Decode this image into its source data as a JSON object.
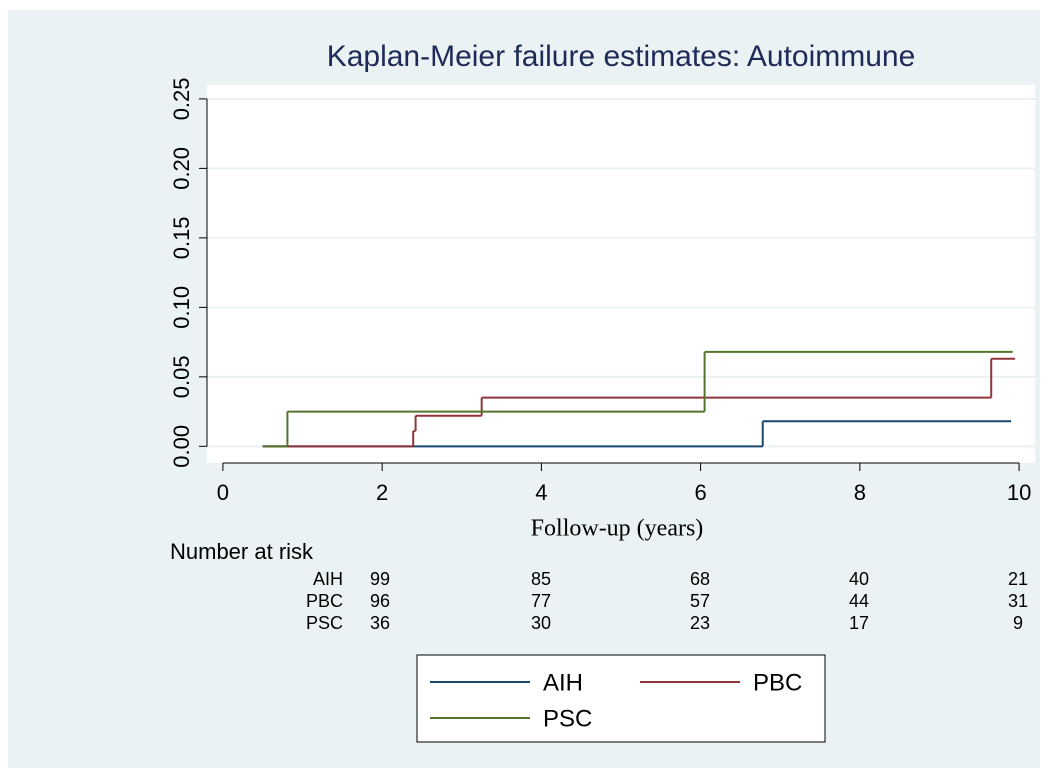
{
  "chart_data": {
    "type": "step",
    "title": "Kaplan-Meier failure estimates: Autoimmune",
    "x_label": "Follow-up (years)",
    "xlim": [
      -0.2,
      10.2
    ],
    "xticks": [
      0,
      2,
      4,
      6,
      8,
      10
    ],
    "ylim": [
      -0.012,
      0.26
    ],
    "yticks": [
      {
        "value": 0,
        "label": "0.00"
      },
      {
        "value": 0.05,
        "label": "0.05"
      },
      {
        "value": 0.1,
        "label": "0.10"
      },
      {
        "value": 0.15,
        "label": "0.15"
      },
      {
        "value": 0.2,
        "label": "0.20"
      },
      {
        "value": 0.25,
        "label": "0.25"
      }
    ],
    "grid": true,
    "series": [
      {
        "name": "AIH",
        "color": "#1a476f",
        "x": [
          0.5,
          6.78,
          9.9
        ],
        "values": [
          0,
          0.018,
          0.018
        ]
      },
      {
        "name": "PBC",
        "color": "#90353b",
        "x": [
          0.5,
          2.39,
          2.42,
          3.25,
          9.65,
          9.95
        ],
        "values": [
          0,
          0.011,
          0.022,
          0.035,
          0.063,
          0.063
        ]
      },
      {
        "name": "PSC",
        "color": "#55752f",
        "x": [
          0.5,
          0.81,
          6.05,
          9.92
        ],
        "values": [
          0,
          0.025,
          0.068,
          0.068
        ]
      }
    ],
    "risk_table": {
      "title": "Number at risk",
      "rows": [
        {
          "label": "AIH",
          "counts": [
            99,
            85,
            68,
            40,
            21
          ]
        },
        {
          "label": "PBC",
          "counts": [
            96,
            77,
            57,
            44,
            31
          ]
        },
        {
          "label": "PSC",
          "counts": [
            36,
            30,
            23,
            17,
            9
          ]
        }
      ]
    }
  }
}
